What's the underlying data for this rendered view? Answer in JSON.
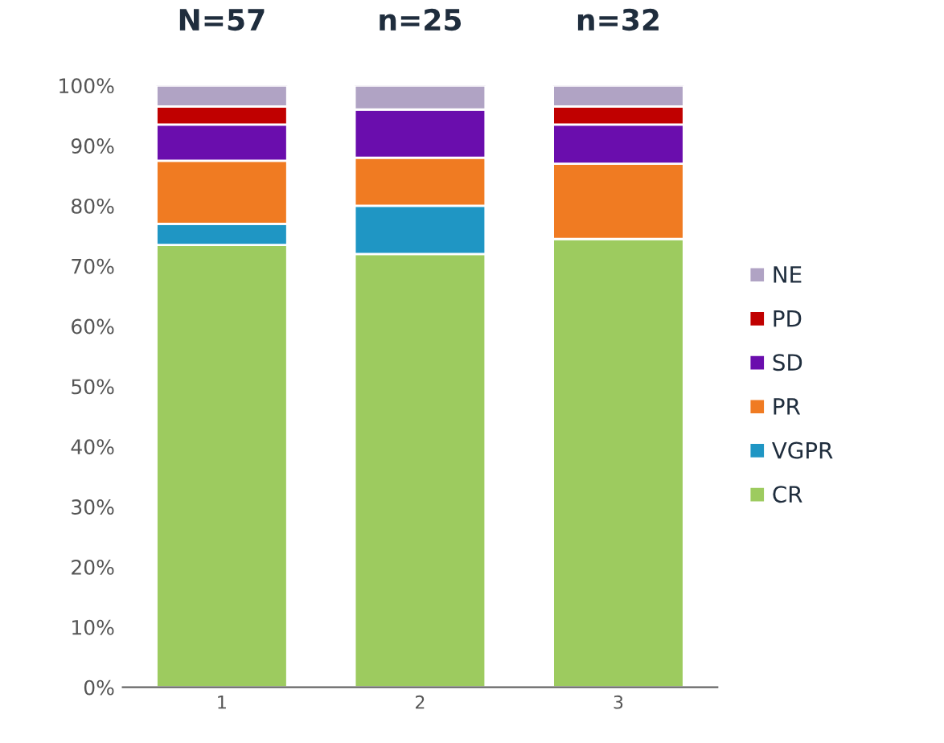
{
  "chart_data": {
    "type": "bar",
    "stacked": true,
    "categories": [
      "1",
      "2",
      "3"
    ],
    "series": [
      {
        "name": "CR",
        "color": "#9dcb5f",
        "values": [
          73.5,
          72,
          74.5
        ]
      },
      {
        "name": "VGPR",
        "color": "#1f96c4",
        "values": [
          3.5,
          8,
          0
        ]
      },
      {
        "name": "PR",
        "color": "#f07b22",
        "values": [
          10.5,
          8,
          12.5
        ]
      },
      {
        "name": "SD",
        "color": "#6a0dad",
        "values": [
          6,
          8,
          6.5
        ]
      },
      {
        "name": "PD",
        "color": "#c00000",
        "values": [
          3,
          0,
          3
        ]
      },
      {
        "name": "NE",
        "color": "#b0a3c4",
        "values": [
          3.5,
          4,
          3.5
        ]
      }
    ],
    "ylim": [
      0,
      100
    ],
    "yticks": [
      {
        "value": 0,
        "label": "0%"
      },
      {
        "value": 10,
        "label": "10%"
      },
      {
        "value": 20,
        "label": "20%"
      },
      {
        "value": 30,
        "label": "30%"
      },
      {
        "value": 40,
        "label": "40%"
      },
      {
        "value": 50,
        "label": "50%"
      },
      {
        "value": 60,
        "label": "60%"
      },
      {
        "value": 70,
        "label": "70%"
      },
      {
        "value": 80,
        "label": "80%"
      },
      {
        "value": 90,
        "label": "90%"
      },
      {
        "value": 100,
        "label": "100%"
      }
    ],
    "annotations": [
      {
        "text": "N=57",
        "x": "1",
        "y": 100
      },
      {
        "text": "n=25",
        "x": "2",
        "y": 100
      },
      {
        "text": "n=32",
        "x": "3",
        "y": 100
      }
    ],
    "legend": "right",
    "grid": false
  }
}
